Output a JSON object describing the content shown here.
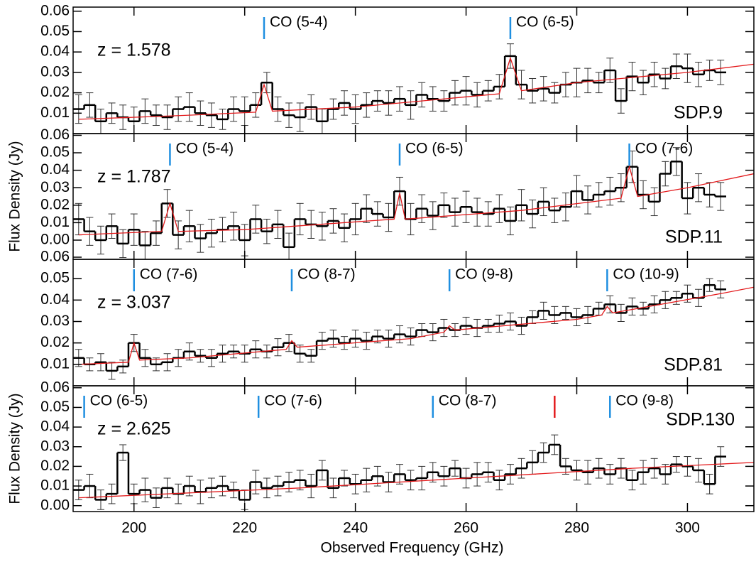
{
  "chart_data": [
    {
      "type": "line",
      "step": true,
      "annotation": "z = 1.578",
      "name": "SDP.9",
      "xlim": [
        189,
        312
      ],
      "ylim": [
        0,
        0.062
      ],
      "xticks": [
        200,
        220,
        240,
        260,
        280,
        300
      ],
      "yticks": [
        0.01,
        0.02,
        0.03,
        0.04,
        0.05,
        0.06
      ],
      "lines": [
        {
          "label": "CO (5-4)",
          "x": 223.5,
          "color": "#1f8fe0"
        },
        {
          "label": "CO (6-5)",
          "x": 268,
          "color": "#1f8fe0"
        }
      ],
      "series": [
        {
          "color": "#000000",
          "x": [
            190,
            192,
            194,
            196,
            198,
            200,
            202,
            204,
            206,
            208,
            210,
            212,
            214,
            216,
            218,
            220,
            222,
            224,
            226,
            228,
            230,
            232,
            234,
            236,
            238,
            240,
            242,
            244,
            246,
            248,
            250,
            252,
            254,
            256,
            258,
            260,
            262,
            264,
            266,
            268,
            270,
            272,
            274,
            276,
            278,
            280,
            282,
            284,
            286,
            288,
            290,
            292,
            294,
            296,
            298,
            300,
            302,
            304,
            306
          ],
          "values": [
            0.012,
            0.014,
            0.006,
            0.01,
            0.008,
            0.006,
            0.011,
            0.009,
            0.008,
            0.012,
            0.013,
            0.01,
            0.009,
            0.007,
            0.012,
            0.011,
            0.014,
            0.025,
            0.012,
            0.009,
            0.008,
            0.013,
            0.006,
            0.012,
            0.015,
            0.012,
            0.014,
            0.016,
            0.015,
            0.017,
            0.014,
            0.019,
            0.017,
            0.016,
            0.02,
            0.021,
            0.019,
            0.021,
            0.023,
            0.038,
            0.024,
            0.021,
            0.022,
            0.02,
            0.024,
            0.025,
            0.026,
            0.025,
            0.031,
            0.016,
            0.028,
            0.025,
            0.029,
            0.027,
            0.033,
            0.032,
            0.029,
            0.031,
            0.03
          ],
          "errors": [
            0.007,
            0.006,
            0.006,
            0.005,
            0.006,
            0.007,
            0.006,
            0.005,
            0.006,
            0.006,
            0.007,
            0.006,
            0.006,
            0.005,
            0.006,
            0.007,
            0.006,
            0.005,
            0.006,
            0.006,
            0.007,
            0.006,
            0.006,
            0.005,
            0.006,
            0.007,
            0.006,
            0.005,
            0.006,
            0.006,
            0.007,
            0.006,
            0.006,
            0.005,
            0.006,
            0.007,
            0.006,
            0.005,
            0.006,
            0.006,
            0.007,
            0.006,
            0.006,
            0.005,
            0.006,
            0.007,
            0.006,
            0.005,
            0.006,
            0.006,
            0.007,
            0.006,
            0.006,
            0.005,
            0.006,
            0.007,
            0.006,
            0.005,
            0.006
          ]
        },
        {
          "color": "#e31a1c",
          "x": [
            190,
            210,
            222,
            223.5,
            225,
            240,
            260,
            266,
            268,
            270,
            280,
            300,
            312
          ],
          "values": [
            0.007,
            0.009,
            0.0105,
            0.024,
            0.011,
            0.013,
            0.018,
            0.0195,
            0.037,
            0.021,
            0.025,
            0.03,
            0.034
          ]
        }
      ]
    },
    {
      "type": "line",
      "step": true,
      "annotation": "z = 1.787",
      "name": "SDP.11",
      "ylabel": "Flux Density (Jy)",
      "xlim": [
        189,
        312
      ],
      "ylim": [
        -0.011,
        0.061
      ],
      "xticks": [
        200,
        220,
        240,
        260,
        280,
        300
      ],
      "yticks": [
        {
          "value": 0,
          "label": "0.00"
        },
        0.01,
        0.02,
        0.03,
        0.04,
        0.05,
        0.06
      ],
      "lines": [
        {
          "label": "CO (5-4)",
          "x": 206.5,
          "color": "#1f8fe0"
        },
        {
          "label": "CO (6-5)",
          "x": 248,
          "color": "#1f8fe0"
        },
        {
          "label": "CO (7-6)",
          "x": 289.5,
          "color": "#1f8fe0"
        }
      ],
      "series": [
        {
          "color": "#000000",
          "x": [
            190,
            192,
            194,
            196,
            198,
            200,
            202,
            204,
            206,
            208,
            210,
            212,
            214,
            216,
            218,
            220,
            222,
            224,
            226,
            228,
            230,
            232,
            234,
            236,
            238,
            240,
            242,
            244,
            246,
            248,
            250,
            252,
            254,
            256,
            258,
            260,
            262,
            264,
            266,
            268,
            270,
            272,
            274,
            276,
            278,
            280,
            282,
            284,
            286,
            288,
            290,
            292,
            294,
            296,
            298,
            300,
            302,
            304,
            306
          ],
          "values": [
            0.012,
            0.005,
            0,
            0.008,
            -0.002,
            0.006,
            -0.003,
            0.004,
            0.021,
            0.003,
            0.008,
            0.001,
            0.004,
            0.006,
            0.008,
            0,
            0.012,
            0.005,
            0.009,
            -0.004,
            0.012,
            0.009,
            0.008,
            0.011,
            0.007,
            0.012,
            0.018,
            0.015,
            0.013,
            0.028,
            0.012,
            0.018,
            0.014,
            0.02,
            0.016,
            0.019,
            0.016,
            0.015,
            0.018,
            0.011,
            0.02,
            0.015,
            0.022,
            0.017,
            0.019,
            0.028,
            0.023,
            0.026,
            0.028,
            0.03,
            0.042,
            0.026,
            0.022,
            0.038,
            0.045,
            0.024,
            0.03,
            0.026,
            0.025
          ],
          "errors": [
            0.009,
            0.008,
            0.008,
            0.007,
            0.008,
            0.009,
            0.008,
            0.007,
            0.008,
            0.008,
            0.009,
            0.008,
            0.008,
            0.007,
            0.008,
            0.009,
            0.008,
            0.007,
            0.008,
            0.008,
            0.009,
            0.008,
            0.008,
            0.007,
            0.008,
            0.009,
            0.008,
            0.007,
            0.008,
            0.008,
            0.009,
            0.008,
            0.008,
            0.007,
            0.008,
            0.009,
            0.008,
            0.007,
            0.008,
            0.008,
            0.009,
            0.008,
            0.008,
            0.007,
            0.008,
            0.009,
            0.008,
            0.007,
            0.008,
            0.008,
            0.009,
            0.008,
            0.008,
            0.007,
            0.008,
            0.009,
            0.008,
            0.007,
            0.008
          ]
        },
        {
          "color": "#e31a1c",
          "x": [
            190,
            205,
            206.5,
            208,
            220,
            247,
            248,
            249,
            270,
            288,
            289.5,
            291,
            300,
            312
          ],
          "values": [
            0.003,
            0.005,
            0.021,
            0.005,
            0.006,
            0.012,
            0.027,
            0.012,
            0.017,
            0.024,
            0.042,
            0.025,
            0.03,
            0.038
          ]
        }
      ]
    },
    {
      "type": "line",
      "step": true,
      "annotation": "z = 3.037",
      "name": "SDP.81",
      "xlim": [
        189,
        312
      ],
      "ylim": [
        0,
        0.059
      ],
      "xticks": [
        200,
        220,
        240,
        260,
        280,
        300
      ],
      "yticks": [
        0.01,
        0.02,
        0.03,
        0.04,
        0.05,
        0.06
      ],
      "lines": [
        {
          "label": "CO (7-6)",
          "x": 200,
          "color": "#1f8fe0"
        },
        {
          "label": "CO (8-7)",
          "x": 228.5,
          "color": "#1f8fe0"
        },
        {
          "label": "CO (9-8)",
          "x": 257,
          "color": "#1f8fe0"
        },
        {
          "label": "CO (10-9)",
          "x": 285.5,
          "color": "#1f8fe0"
        }
      ],
      "series": [
        {
          "color": "#000000",
          "x": [
            190,
            192,
            194,
            196,
            198,
            200,
            202,
            204,
            206,
            208,
            210,
            212,
            214,
            216,
            218,
            220,
            222,
            224,
            226,
            228,
            230,
            232,
            234,
            236,
            238,
            240,
            242,
            244,
            246,
            248,
            250,
            252,
            254,
            256,
            258,
            260,
            262,
            264,
            266,
            268,
            270,
            272,
            274,
            276,
            278,
            280,
            282,
            284,
            286,
            288,
            290,
            292,
            294,
            296,
            298,
            300,
            302,
            304,
            306
          ],
          "values": [
            0.013,
            0.01,
            0.011,
            0.007,
            0.009,
            0.02,
            0.013,
            0.01,
            0.011,
            0.013,
            0.016,
            0.014,
            0.013,
            0.015,
            0.016,
            0.015,
            0.017,
            0.016,
            0.018,
            0.02,
            0.015,
            0.014,
            0.021,
            0.022,
            0.02,
            0.022,
            0.021,
            0.023,
            0.022,
            0.024,
            0.023,
            0.026,
            0.025,
            0.027,
            0.026,
            0.028,
            0.027,
            0.028,
            0.029,
            0.03,
            0.028,
            0.032,
            0.035,
            0.033,
            0.034,
            0.032,
            0.033,
            0.036,
            0.038,
            0.034,
            0.037,
            0.036,
            0.038,
            0.04,
            0.041,
            0.043,
            0.041,
            0.047,
            0.045
          ],
          "errors": [
            0.004,
            0.003,
            0.004,
            0.004,
            0.003,
            0.004,
            0.004,
            0.003,
            0.004,
            0.004,
            0.004,
            0.003,
            0.004,
            0.004,
            0.003,
            0.004,
            0.004,
            0.003,
            0.004,
            0.004,
            0.004,
            0.003,
            0.004,
            0.004,
            0.003,
            0.004,
            0.004,
            0.003,
            0.004,
            0.004,
            0.004,
            0.003,
            0.004,
            0.004,
            0.003,
            0.004,
            0.004,
            0.003,
            0.004,
            0.004,
            0.004,
            0.003,
            0.004,
            0.004,
            0.003,
            0.004,
            0.004,
            0.003,
            0.004,
            0.004,
            0.004,
            0.003,
            0.004,
            0.004,
            0.003,
            0.004,
            0.004,
            0.003,
            0.004
          ]
        },
        {
          "color": "#e31a1c",
          "x": [
            190,
            199,
            200,
            201,
            210,
            227.5,
            228.5,
            229.5,
            250,
            256,
            257,
            258,
            280,
            284.5,
            285.5,
            286.5,
            306,
            312
          ],
          "values": [
            0.01,
            0.011,
            0.02,
            0.012,
            0.013,
            0.017,
            0.021,
            0.018,
            0.022,
            0.025,
            0.028,
            0.026,
            0.031,
            0.033,
            0.037,
            0.034,
            0.043,
            0.046
          ]
        }
      ]
    },
    {
      "type": "line",
      "step": true,
      "annotation": "z = 2.625",
      "name": "SDP.130",
      "ylabel": "Flux Density (Jy)",
      "xlabel": "Observed Frequency (GHz)",
      "xlim": [
        189,
        312
      ],
      "ylim": [
        -0.003,
        0.061
      ],
      "xticks": [
        200,
        220,
        240,
        260,
        280,
        300
      ],
      "yticks": [
        {
          "value": 0,
          "label": "0.00"
        },
        0.01,
        0.02,
        0.03,
        0.04,
        0.05,
        0.06
      ],
      "lines": [
        {
          "label": "CO (6-5)",
          "x": 191,
          "color": "#1f8fe0"
        },
        {
          "label": "CO (7-6)",
          "x": 222.5,
          "color": "#1f8fe0"
        },
        {
          "label": "CO (8-7)",
          "x": 254,
          "color": "#1f8fe0"
        },
        {
          "x": 276,
          "color": "#e31a1c"
        },
        {
          "label": "CO (9-8)",
          "x": 286,
          "color": "#1f8fe0"
        }
      ],
      "series": [
        {
          "color": "#000000",
          "x": [
            190,
            192,
            194,
            196,
            198,
            200,
            202,
            204,
            206,
            208,
            210,
            212,
            214,
            216,
            218,
            220,
            222,
            224,
            226,
            228,
            230,
            232,
            234,
            236,
            238,
            240,
            242,
            244,
            246,
            248,
            250,
            252,
            254,
            256,
            258,
            260,
            262,
            264,
            266,
            268,
            270,
            272,
            274,
            276,
            278,
            280,
            282,
            284,
            286,
            288,
            290,
            292,
            294,
            296,
            298,
            300,
            302,
            304,
            306
          ],
          "values": [
            0.008,
            0.01,
            0.003,
            0.006,
            0.027,
            0.006,
            0.008,
            0.004,
            0.009,
            0.006,
            0.01,
            0.007,
            0.009,
            0.01,
            0.008,
            0.003,
            0.012,
            0.009,
            0.01,
            0.012,
            0.013,
            0.01,
            0.018,
            0.009,
            0.014,
            0.011,
            0.013,
            0.015,
            0.012,
            0.016,
            0.013,
            0.014,
            0.017,
            0.015,
            0.019,
            0.014,
            0.016,
            0.017,
            0.013,
            0.016,
            0.019,
            0.022,
            0.027,
            0.031,
            0.02,
            0.018,
            0.017,
            0.019,
            0.016,
            0.019,
            0.013,
            0.017,
            0.019,
            0.016,
            0.021,
            0.02,
            0.018,
            0.011,
            0.025
          ],
          "errors": [
            0.005,
            0.006,
            0.005,
            0.005,
            0.004,
            0.005,
            0.006,
            0.005,
            0.005,
            0.005,
            0.005,
            0.006,
            0.005,
            0.005,
            0.004,
            0.005,
            0.006,
            0.005,
            0.005,
            0.005,
            0.005,
            0.006,
            0.005,
            0.005,
            0.004,
            0.005,
            0.006,
            0.005,
            0.005,
            0.005,
            0.005,
            0.006,
            0.005,
            0.005,
            0.004,
            0.005,
            0.006,
            0.005,
            0.005,
            0.005,
            0.005,
            0.006,
            0.005,
            0.005,
            0.004,
            0.005,
            0.006,
            0.005,
            0.005,
            0.005,
            0.005,
            0.006,
            0.005,
            0.005,
            0.004,
            0.005,
            0.006,
            0.005,
            0.005
          ]
        },
        {
          "color": "#e31a1c",
          "x": [
            190,
            230,
            260,
            290,
            312
          ],
          "values": [
            0.004,
            0.009,
            0.014,
            0.019,
            0.022
          ]
        }
      ]
    }
  ]
}
